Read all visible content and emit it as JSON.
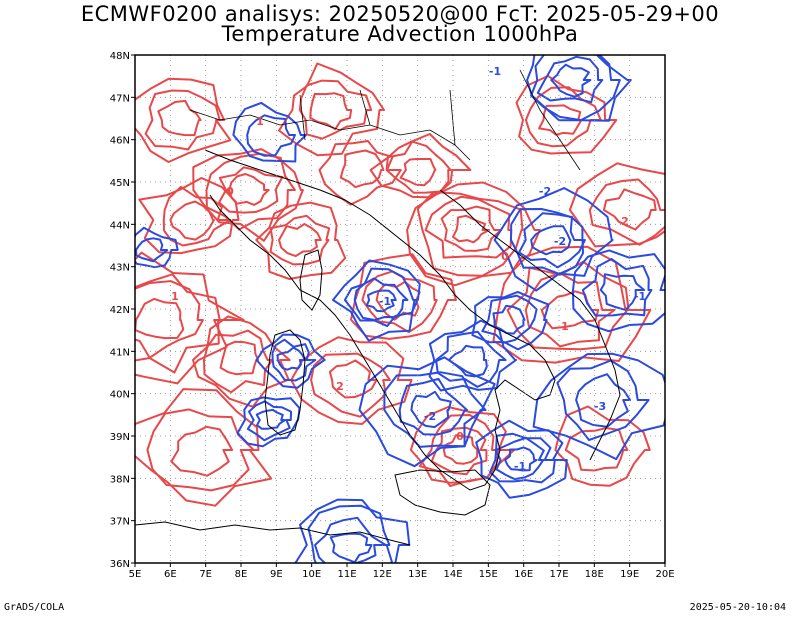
{
  "title_line1": "ECMWF0200 analisys: 20250520@00 FcT: 2025-05-29+00",
  "title_line2": "Temperature Advection 1000hPa",
  "footer_left": "GrADS/COLA",
  "footer_right": "2025-05-20-10:04",
  "map": {
    "lon_labels": [
      "5E",
      "6E",
      "7E",
      "8E",
      "9E",
      "10E",
      "11E",
      "12E",
      "13E",
      "14E",
      "15E",
      "16E",
      "17E",
      "18E",
      "19E",
      "20E"
    ],
    "lat_labels": [
      "36N",
      "37N",
      "38N",
      "39N",
      "40N",
      "41N",
      "42N",
      "43N",
      "44N",
      "45N",
      "46N",
      "47N",
      "48N"
    ],
    "lon_range": [
      5,
      20
    ],
    "lat_range": [
      36,
      48
    ],
    "grid": "dotted",
    "colors": {
      "positive_contours": "#e8484a",
      "negative_contours": "#2a4ae0",
      "coastline": "#000000"
    },
    "contour_labels_positive": [
      "0",
      "1",
      "2",
      "0",
      "1",
      "2",
      "1",
      "0"
    ],
    "contour_labels_negative": [
      "-1",
      "-2",
      "-1",
      "-2",
      "-1",
      "-3",
      "-2",
      "-1"
    ]
  }
}
